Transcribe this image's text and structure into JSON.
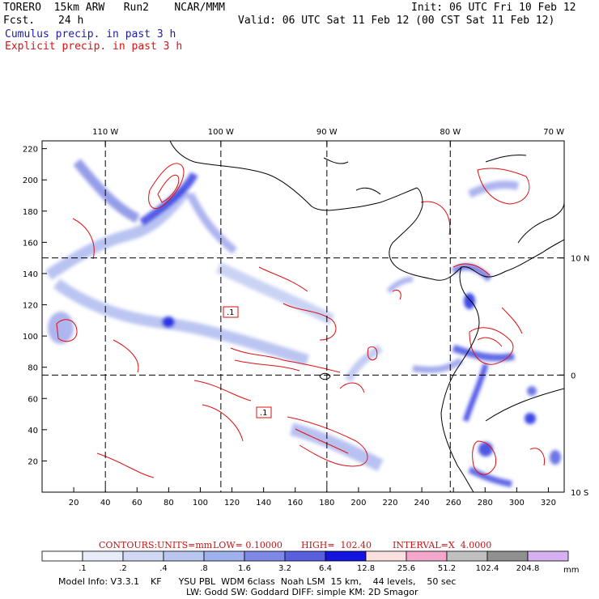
{
  "header": {
    "model": "TORERO  15km ARW   Run2    NCAR/MMM",
    "init": "Init: 06 UTC Fri 10 Feb 12",
    "fcst_label": "Fcst.",
    "fcst_value": "24 h",
    "valid": "Valid: 06 UTC Sat 11 Feb 12 (00 CST Sat 11 Feb 12)",
    "legend_cumulus": "Cumulus precip. in past 3 h",
    "legend_explicit": "Explicit precip. in past 3 h"
  },
  "colors": {
    "cumulus_legend": "#1c1ca8",
    "explicit": "#dd1111",
    "frame": "#000000"
  },
  "chart_data": {
    "type": "heatmap",
    "title": "Cumulus precip. in past 3 h / Explicit precip. in past 3 h",
    "x_grid_ticks": [
      20,
      40,
      60,
      80,
      100,
      120,
      140,
      160,
      180,
      200,
      220,
      240,
      260,
      280,
      300,
      320
    ],
    "y_grid_ticks": [
      20,
      40,
      60,
      80,
      100,
      120,
      140,
      160,
      180,
      200,
      220
    ],
    "xlim": [
      0,
      330
    ],
    "ylim": [
      0,
      225
    ],
    "longitude_labels": [
      "110 W",
      "100 W",
      "90 W",
      "80 W",
      "70 W"
    ],
    "longitude_label_x": [
      40,
      113,
      180,
      258,
      330
    ],
    "latitude_labels": [
      "10 N",
      "0",
      "10 S"
    ],
    "latitude_label_y": [
      150,
      75,
      0
    ],
    "dashed_lon_lines_x": [
      40,
      113,
      180,
      258
    ],
    "dashed_lat_lines_y": [
      150,
      75
    ],
    "contour_labels": [
      ".1",
      ".1"
    ],
    "colorbar": {
      "units": "mm",
      "levels": [
        ".1",
        ".2",
        ".4",
        ".8",
        "1.6",
        "3.2",
        "6.4",
        "12.8",
        "25.6",
        "51.2",
        "102.4",
        "204.8"
      ],
      "colors": [
        "#ffffff",
        "#e8ecf8",
        "#d0d8f4",
        "#b8c6f0",
        "#a0b0ec",
        "#8088e6",
        "#5860e0",
        "#1414e0",
        "#fbe0e0",
        "#f5a6cc",
        "#c0c0c0",
        "#909090",
        "#d6b0f0"
      ]
    },
    "contours_info": {
      "label": "CONTOURS:",
      "units": "UNITS=mm",
      "low": "LOW= 0.10000",
      "high": "HIGH=  102.40",
      "interval": "INTERVAL=X  4.0000"
    }
  },
  "footer": {
    "line1": "Model Info: V3.3.1    KF      YSU PBL  WDM 6class  Noah LSM  15 km,    44 levels,    50 sec",
    "line2": "LW: Godd SW: Goddard DIFF: simple KM: 2D Smagor"
  }
}
